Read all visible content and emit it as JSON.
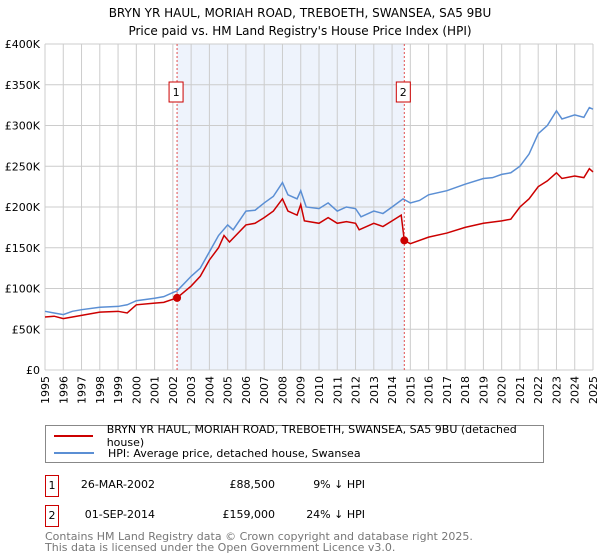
{
  "chart_data": {
    "type": "line",
    "title": "BRYN YR HAUL, MORIAH ROAD, TREBOETH, SWANSEA, SA5 9BU",
    "subtitle": "Price paid vs. HM Land Registry's House Price Index (HPI)",
    "ylim": [
      0,
      400000
    ],
    "xlim": [
      1995,
      2025
    ],
    "yticks": [
      {
        "v": 0,
        "label": "£0"
      },
      {
        "v": 50000,
        "label": "£50K"
      },
      {
        "v": 100000,
        "label": "£100K"
      },
      {
        "v": 150000,
        "label": "£150K"
      },
      {
        "v": 200000,
        "label": "£200K"
      },
      {
        "v": 250000,
        "label": "£250K"
      },
      {
        "v": 300000,
        "label": "£300K"
      },
      {
        "v": 350000,
        "label": "£350K"
      },
      {
        "v": 400000,
        "label": "£400K"
      }
    ],
    "xticks": [
      "1995",
      "1996",
      "1997",
      "1998",
      "1999",
      "2000",
      "2001",
      "2002",
      "2003",
      "2004",
      "2005",
      "2006",
      "2007",
      "2008",
      "2009",
      "2010",
      "2011",
      "2012",
      "2013",
      "2014",
      "2015",
      "2016",
      "2017",
      "2018",
      "2019",
      "2020",
      "2021",
      "2022",
      "2023",
      "2024",
      "2025"
    ],
    "grid": true,
    "shaded_range": [
      2002.23,
      2014.67
    ],
    "series": [
      {
        "name": "BRYN YR HAUL, MORIAH ROAD, TREBOETH, SWANSEA, SA5 9BU (detached house)",
        "color": "#cc0000",
        "x": [
          1995,
          1995.5,
          1996,
          1996.5,
          1997,
          1998,
          1999,
          1999.5,
          2000,
          2001,
          2001.5,
          2002.23,
          2003,
          2003.5,
          2004,
          2004.5,
          2004.8,
          2005.1,
          2006,
          2006.5,
          2007,
          2007.5,
          2008,
          2008.3,
          2008.8,
          2009,
          2009.2,
          2010,
          2010.5,
          2011,
          2011.5,
          2012,
          2012.2,
          2013,
          2013.5,
          2014,
          2014.5,
          2014.67,
          2015,
          2016,
          2017,
          2018,
          2019,
          2020,
          2020.5,
          2021,
          2021.5,
          2022,
          2022.5,
          2023,
          2023.3,
          2024,
          2024.5,
          2024.8,
          2025
        ],
        "y": [
          65000,
          66000,
          63000,
          65000,
          67000,
          71000,
          72000,
          70000,
          80000,
          82000,
          83000,
          88500,
          103000,
          115000,
          135000,
          150000,
          165000,
          157000,
          178000,
          180000,
          187000,
          195000,
          210000,
          195000,
          190000,
          203000,
          183000,
          180000,
          187000,
          180000,
          182000,
          180000,
          172000,
          180000,
          176000,
          183000,
          190000,
          159000,
          155000,
          163000,
          168000,
          175000,
          180000,
          183000,
          185000,
          200000,
          210000,
          225000,
          232000,
          242000,
          235000,
          238000,
          236000,
          247000,
          243000
        ]
      },
      {
        "name": "HPI: Average price, detached house, Swansea",
        "color": "#5b8fd4",
        "x": [
          1995,
          1995.5,
          1996,
          1996.5,
          1997,
          1998,
          1999,
          1999.5,
          2000,
          2001,
          2001.5,
          2002,
          2002.23,
          2003,
          2003.5,
          2004,
          2004.5,
          2005,
          2005.3,
          2006,
          2006.5,
          2007,
          2007.5,
          2008,
          2008.3,
          2008.8,
          2009,
          2009.3,
          2010,
          2010.5,
          2011,
          2011.5,
          2012,
          2012.3,
          2013,
          2013.5,
          2014,
          2014.6,
          2015,
          2015.5,
          2016,
          2017,
          2018,
          2019,
          2019.5,
          2020,
          2020.5,
          2021,
          2021.5,
          2022,
          2022.5,
          2023,
          2023.3,
          2024,
          2024.5,
          2024.8,
          2025
        ],
        "y": [
          72000,
          70000,
          68000,
          72000,
          74000,
          77000,
          78000,
          80000,
          85000,
          88000,
          90000,
          95000,
          97000,
          115000,
          125000,
          145000,
          165000,
          178000,
          172000,
          195000,
          196000,
          205000,
          213000,
          230000,
          215000,
          210000,
          220000,
          200000,
          198000,
          205000,
          195000,
          200000,
          198000,
          188000,
          195000,
          192000,
          200000,
          210000,
          205000,
          208000,
          215000,
          220000,
          228000,
          235000,
          236000,
          240000,
          242000,
          250000,
          265000,
          290000,
          300000,
          318000,
          308000,
          313000,
          310000,
          322000,
          320000
        ]
      }
    ],
    "sales": [
      {
        "id": "1",
        "date": "26-MAR-2002",
        "x": 2002.23,
        "price": "£88,500",
        "price_value": 88500,
        "hpi": "9% ↓ HPI"
      },
      {
        "id": "2",
        "date": "01-SEP-2014",
        "x": 2014.67,
        "price": "£159,000",
        "price_value": 159000,
        "hpi": "24% ↓ HPI"
      }
    ]
  },
  "footer": {
    "line1": "Contains HM Land Registry data © Crown copyright and database right 2025.",
    "line2": "This data is licensed under the Open Government Licence v3.0."
  }
}
